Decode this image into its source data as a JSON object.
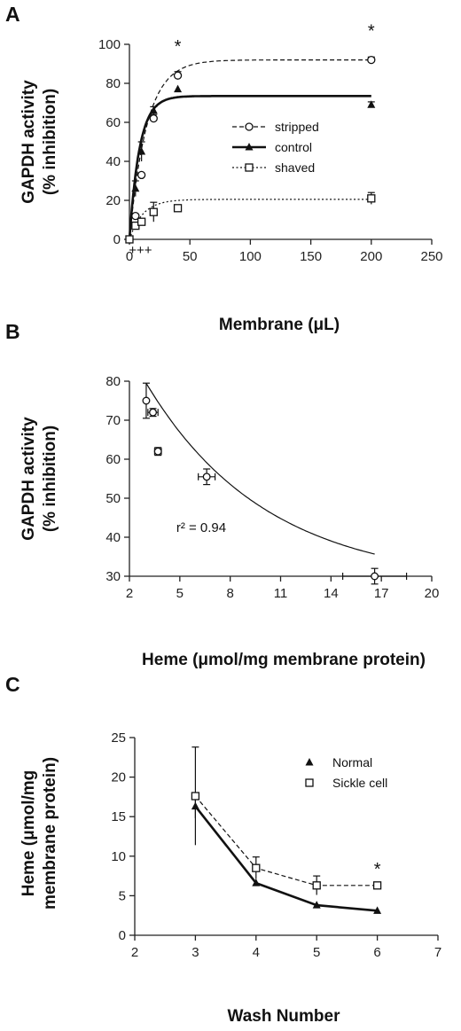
{
  "chart_data": [
    {
      "panel": "A",
      "type": "scatter",
      "ylabel_lines": [
        "GAPDH activity",
        "(% inhibition)"
      ],
      "xlabel": "Membrane (μL)",
      "xlim": [
        0,
        250
      ],
      "ylim": [
        0,
        100
      ],
      "xticks": [
        0,
        50,
        100,
        150,
        200,
        250
      ],
      "yticks": [
        0,
        20,
        40,
        60,
        80,
        100
      ],
      "legend_position": "center-right",
      "series": [
        {
          "name": "stripped",
          "marker": "open-circle",
          "line": "dashed",
          "points": [
            [
              0,
              0
            ],
            [
              5,
              12
            ],
            [
              10,
              33
            ],
            [
              20,
              62
            ],
            [
              40,
              84
            ],
            [
              200,
              92
            ]
          ],
          "errors": [
            0,
            0,
            0,
            2,
            2,
            1.5
          ],
          "fit_plateau": 92,
          "fit_k": 0.07
        },
        {
          "name": "control",
          "marker": "filled-triangle",
          "line": "solid",
          "points": [
            [
              0,
              0
            ],
            [
              5,
              26
            ],
            [
              10,
              45
            ],
            [
              20,
              66
            ],
            [
              40,
              77
            ],
            [
              200,
              69
            ]
          ],
          "errors": [
            0,
            4,
            5,
            2,
            0,
            1.5
          ],
          "fit_plateau": 73.5,
          "fit_k": 0.12
        },
        {
          "name": "shaved",
          "marker": "open-square",
          "line": "dotted",
          "points": [
            [
              0,
              0
            ],
            [
              5,
              7
            ],
            [
              10,
              9
            ],
            [
              20,
              14
            ],
            [
              40,
              16
            ],
            [
              200,
              21
            ]
          ],
          "errors": [
            0,
            0,
            0,
            5,
            0,
            3
          ],
          "fit_plateau": 20.5,
          "fit_k": 0.09
        }
      ],
      "annotations": [
        {
          "text": "*",
          "x": 40,
          "y": 84
        },
        {
          "text": "*",
          "x": 200,
          "y": 92
        },
        {
          "text": "+++",
          "x": 12,
          "y": -8
        }
      ]
    },
    {
      "panel": "B",
      "type": "scatter",
      "ylabel_lines": [
        "GAPDH activity",
        "(% inhibition)"
      ],
      "xlabel": "Heme (μmol/mg membrane protein)",
      "xlim": [
        2,
        20
      ],
      "ylim": [
        30,
        80
      ],
      "xticks": [
        2,
        5,
        8,
        11,
        14,
        17,
        20
      ],
      "yticks": [
        30,
        40,
        50,
        60,
        70,
        80
      ],
      "points": [
        {
          "x": 3.0,
          "y": 75,
          "xerr": 0,
          "yerr": 4.5
        },
        {
          "x": 3.4,
          "y": 72,
          "xerr": 0.3,
          "yerr": 1
        },
        {
          "x": 3.7,
          "y": 62,
          "xerr": 0.2,
          "yerr": 1
        },
        {
          "x": 6.6,
          "y": 55.5,
          "xerr": 0.5,
          "yerr": 2
        },
        {
          "x": 16.6,
          "y": 30,
          "xerr": 1.9,
          "yerr": 2
        }
      ],
      "fit": {
        "a": 28,
        "b": 51.5,
        "k": 0.14
      },
      "annotation": {
        "text": "r² = 0.94",
        "x": 5,
        "y": 40
      }
    },
    {
      "panel": "C",
      "type": "line",
      "ylabel_lines": [
        "Heme (μmol/mg",
        "membrane protein)"
      ],
      "xlabel": "Wash Number",
      "xlim": [
        2,
        7
      ],
      "ylim": [
        0,
        25
      ],
      "xticks": [
        2,
        3,
        4,
        5,
        6,
        7
      ],
      "yticks": [
        0,
        5,
        10,
        15,
        20,
        25
      ],
      "legend_position": "top-right",
      "series": [
        {
          "name": "Normal",
          "marker": "filled-triangle",
          "line": "solid",
          "x": [
            3,
            4,
            5,
            6
          ],
          "values": [
            16.3,
            6.6,
            3.8,
            3.1
          ],
          "errors": [
            1.5,
            0,
            0,
            0
          ]
        },
        {
          "name": "Sickle cell",
          "marker": "open-square",
          "line": "dashed",
          "x": [
            3,
            4,
            5,
            6
          ],
          "values": [
            17.6,
            8.5,
            6.3,
            6.3
          ],
          "errors": [
            6.2,
            1.4,
            1.2,
            0
          ]
        }
      ],
      "annotations": [
        {
          "text": "*",
          "x": 6,
          "y": 6.3
        }
      ]
    }
  ]
}
